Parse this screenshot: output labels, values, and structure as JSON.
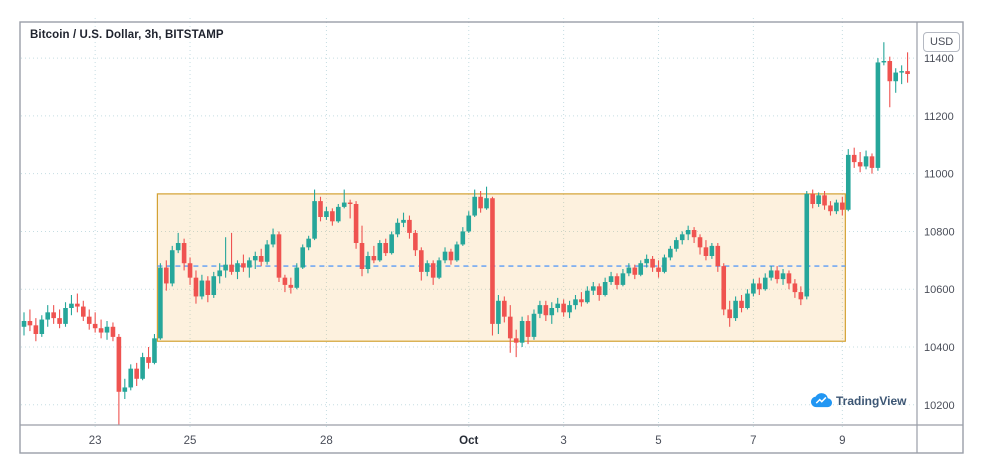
{
  "header": {
    "symbol_title": "Bitcoin / U.S. Dollar, 3h, BITSTAMP"
  },
  "price_axis": {
    "currency_label": "USD"
  },
  "watermark": {
    "label": "TradingView"
  },
  "colors": {
    "up": "#26a69a",
    "down": "#ef5350",
    "grid": "#c5dde2",
    "frame": "#9a9ea8",
    "zone_fill": "rgba(243,166,51,0.16)",
    "zone_border": "#d3a132",
    "dashed_line": "#5b9cf6",
    "axis_text": "#4a4e59",
    "bold_tick_text": "#262b35",
    "title_text": "#1e222d",
    "watermark_text": "#3c5674",
    "logo_blue": "#2196f3",
    "background": "#ffffff"
  },
  "chart_data": {
    "type": "candlestick",
    "title": "Bitcoin / U.S. Dollar, 3h, BITSTAMP",
    "symbol": "Bitcoin / U.S. Dollar",
    "interval": "3h",
    "exchange": "BITSTAMP",
    "currency": "USD",
    "ylim": [
      10130,
      11525
    ],
    "grid": true,
    "price_labels": [
      11400,
      11200,
      11000,
      10800,
      10600,
      10400,
      10200
    ],
    "x_ticks": [
      {
        "label": "23",
        "index": 12,
        "bold": false
      },
      {
        "label": "25",
        "index": 28,
        "bold": false
      },
      {
        "label": "28",
        "index": 51,
        "bold": false
      },
      {
        "label": "Oct",
        "index": 75,
        "bold": true
      },
      {
        "label": "3",
        "index": 91,
        "bold": false
      },
      {
        "label": "5",
        "index": 107,
        "bold": false
      },
      {
        "label": "7",
        "index": 123,
        "bold": false
      },
      {
        "label": "9",
        "index": 138,
        "bold": false
      }
    ],
    "zone": {
      "shape": "rectangle",
      "top": 10930,
      "bottom": 10420,
      "mid_dashed": 10680,
      "start_index": 23,
      "end_index": 138
    },
    "candles": [
      [
        10470,
        10520,
        10440,
        10490
      ],
      [
        10490,
        10530,
        10455,
        10475
      ],
      [
        10475,
        10500,
        10420,
        10445
      ],
      [
        10445,
        10510,
        10435,
        10495
      ],
      [
        10495,
        10545,
        10470,
        10520
      ],
      [
        10520,
        10545,
        10480,
        10500
      ],
      [
        10500,
        10530,
        10465,
        10480
      ],
      [
        10480,
        10555,
        10470,
        10535
      ],
      [
        10535,
        10580,
        10510,
        10550
      ],
      [
        10550,
        10585,
        10520,
        10540
      ],
      [
        10540,
        10560,
        10490,
        10505
      ],
      [
        10505,
        10530,
        10460,
        10480
      ],
      [
        10480,
        10520,
        10450,
        10465
      ],
      [
        10465,
        10495,
        10430,
        10450
      ],
      [
        10450,
        10490,
        10425,
        10470
      ],
      [
        10470,
        10485,
        10420,
        10435
      ],
      [
        10435,
        10445,
        10130,
        10245
      ],
      [
        10245,
        10290,
        10220,
        10260
      ],
      [
        10260,
        10340,
        10250,
        10325
      ],
      [
        10325,
        10345,
        10265,
        10290
      ],
      [
        10290,
        10380,
        10285,
        10365
      ],
      [
        10365,
        10400,
        10325,
        10345
      ],
      [
        10345,
        10445,
        10340,
        10430
      ],
      [
        10430,
        10690,
        10425,
        10675
      ],
      [
        10675,
        10700,
        10595,
        10620
      ],
      [
        10620,
        10750,
        10610,
        10735
      ],
      [
        10735,
        10795,
        10725,
        10760
      ],
      [
        10760,
        10775,
        10665,
        10690
      ],
      [
        10690,
        10710,
        10615,
        10640
      ],
      [
        10640,
        10665,
        10550,
        10575
      ],
      [
        10575,
        10650,
        10565,
        10630
      ],
      [
        10630,
        10645,
        10555,
        10580
      ],
      [
        10580,
        10660,
        10570,
        10645
      ],
      [
        10645,
        10690,
        10620,
        10665
      ],
      [
        10665,
        10780,
        10640,
        10685
      ],
      [
        10685,
        10795,
        10650,
        10660
      ],
      [
        10660,
        10700,
        10635,
        10690
      ],
      [
        10690,
        10720,
        10660,
        10675
      ],
      [
        10675,
        10710,
        10640,
        10700
      ],
      [
        10700,
        10730,
        10670,
        10715
      ],
      [
        10715,
        10740,
        10680,
        10695
      ],
      [
        10695,
        10770,
        10685,
        10755
      ],
      [
        10755,
        10810,
        10745,
        10790
      ],
      [
        10790,
        10800,
        10625,
        10640
      ],
      [
        10640,
        10650,
        10590,
        10615
      ],
      [
        10615,
        10640,
        10585,
        10605
      ],
      [
        10605,
        10690,
        10600,
        10675
      ],
      [
        10675,
        10755,
        10670,
        10745
      ],
      [
        10745,
        10785,
        10735,
        10775
      ],
      [
        10775,
        10945,
        10770,
        10905
      ],
      [
        10905,
        10920,
        10835,
        10850
      ],
      [
        10850,
        10885,
        10840,
        10870
      ],
      [
        10870,
        10880,
        10820,
        10835
      ],
      [
        10835,
        10895,
        10830,
        10885
      ],
      [
        10885,
        10945,
        10880,
        10900
      ],
      [
        10900,
        10910,
        10845,
        10895
      ],
      [
        10895,
        10905,
        10740,
        10760
      ],
      [
        10760,
        10820,
        10645,
        10670
      ],
      [
        10670,
        10730,
        10655,
        10715
      ],
      [
        10715,
        10750,
        10690,
        10700
      ],
      [
        10700,
        10770,
        10695,
        10760
      ],
      [
        10760,
        10775,
        10715,
        10725
      ],
      [
        10725,
        10800,
        10720,
        10790
      ],
      [
        10790,
        10845,
        10780,
        10830
      ],
      [
        10830,
        10865,
        10815,
        10840
      ],
      [
        10840,
        10855,
        10775,
        10795
      ],
      [
        10795,
        10805,
        10715,
        10735
      ],
      [
        10735,
        10745,
        10630,
        10660
      ],
      [
        10660,
        10700,
        10645,
        10690
      ],
      [
        10690,
        10700,
        10615,
        10640
      ],
      [
        10640,
        10710,
        10635,
        10700
      ],
      [
        10700,
        10745,
        10690,
        10730
      ],
      [
        10730,
        10740,
        10685,
        10700
      ],
      [
        10700,
        10765,
        10695,
        10755
      ],
      [
        10755,
        10815,
        10750,
        10800
      ],
      [
        10800,
        10870,
        10795,
        10855
      ],
      [
        10855,
        10945,
        10850,
        10920
      ],
      [
        10920,
        10940,
        10865,
        10880
      ],
      [
        10880,
        10955,
        10875,
        10915
      ],
      [
        10915,
        10920,
        10440,
        10480
      ],
      [
        10480,
        10580,
        10445,
        10560
      ],
      [
        10560,
        10575,
        10485,
        10505
      ],
      [
        10505,
        10545,
        10380,
        10430
      ],
      [
        10430,
        10460,
        10365,
        10415
      ],
      [
        10415,
        10505,
        10400,
        10490
      ],
      [
        10490,
        10510,
        10410,
        10435
      ],
      [
        10435,
        10530,
        10425,
        10515
      ],
      [
        10515,
        10560,
        10500,
        10545
      ],
      [
        10545,
        10560,
        10490,
        10510
      ],
      [
        10510,
        10555,
        10480,
        10535
      ],
      [
        10535,
        10570,
        10520,
        10550
      ],
      [
        10550,
        10565,
        10505,
        10520
      ],
      [
        10520,
        10560,
        10500,
        10545
      ],
      [
        10545,
        10580,
        10530,
        10565
      ],
      [
        10565,
        10590,
        10540,
        10555
      ],
      [
        10555,
        10610,
        10550,
        10595
      ],
      [
        10595,
        10625,
        10580,
        10610
      ],
      [
        10610,
        10620,
        10560,
        10580
      ],
      [
        10580,
        10640,
        10575,
        10625
      ],
      [
        10625,
        10660,
        10615,
        10645
      ],
      [
        10645,
        10655,
        10600,
        10615
      ],
      [
        10615,
        10670,
        10610,
        10655
      ],
      [
        10655,
        10690,
        10645,
        10675
      ],
      [
        10675,
        10685,
        10635,
        10650
      ],
      [
        10650,
        10700,
        10645,
        10690
      ],
      [
        10690,
        10720,
        10675,
        10705
      ],
      [
        10705,
        10715,
        10660,
        10675
      ],
      [
        10675,
        10700,
        10640,
        10660
      ],
      [
        10660,
        10720,
        10655,
        10710
      ],
      [
        10710,
        10750,
        10700,
        10740
      ],
      [
        10740,
        10780,
        10730,
        10770
      ],
      [
        10770,
        10800,
        10755,
        10790
      ],
      [
        10790,
        10820,
        10770,
        10805
      ],
      [
        10805,
        10815,
        10760,
        10780
      ],
      [
        10780,
        10790,
        10720,
        10745
      ],
      [
        10745,
        10770,
        10700,
        10715
      ],
      [
        10715,
        10760,
        10705,
        10750
      ],
      [
        10750,
        10760,
        10660,
        10680
      ],
      [
        10680,
        10690,
        10510,
        10530
      ],
      [
        10530,
        10560,
        10470,
        10500
      ],
      [
        10500,
        10575,
        10490,
        10560
      ],
      [
        10560,
        10580,
        10520,
        10535
      ],
      [
        10535,
        10600,
        10530,
        10585
      ],
      [
        10585,
        10635,
        10575,
        10620
      ],
      [
        10620,
        10640,
        10580,
        10600
      ],
      [
        10600,
        10655,
        10595,
        10640
      ],
      [
        10640,
        10680,
        10630,
        10665
      ],
      [
        10665,
        10680,
        10620,
        10635
      ],
      [
        10635,
        10670,
        10615,
        10655
      ],
      [
        10655,
        10665,
        10600,
        10620
      ],
      [
        10620,
        10635,
        10570,
        10590
      ],
      [
        10590,
        10610,
        10545,
        10565
      ],
      [
        10575,
        10940,
        10565,
        10930
      ],
      [
        10930,
        10945,
        10880,
        10895
      ],
      [
        10895,
        10935,
        10885,
        10925
      ],
      [
        10925,
        10940,
        10875,
        10890
      ],
      [
        10890,
        10905,
        10855,
        10870
      ],
      [
        10870,
        10910,
        10860,
        10900
      ],
      [
        10900,
        10920,
        10855,
        10875
      ],
      [
        10875,
        11085,
        10870,
        11065
      ],
      [
        11065,
        11090,
        11020,
        11040
      ],
      [
        11040,
        11075,
        11005,
        11025
      ],
      [
        11025,
        11080,
        11015,
        11060
      ],
      [
        11060,
        11070,
        11000,
        11020
      ],
      [
        11020,
        11400,
        11010,
        11385
      ],
      [
        11385,
        11455,
        11375,
        11390
      ],
      [
        11390,
        11405,
        11230,
        11320
      ],
      [
        11320,
        11365,
        11280,
        11350
      ],
      [
        11350,
        11375,
        11310,
        11355
      ],
      [
        11355,
        11420,
        11315,
        11345
      ]
    ]
  }
}
